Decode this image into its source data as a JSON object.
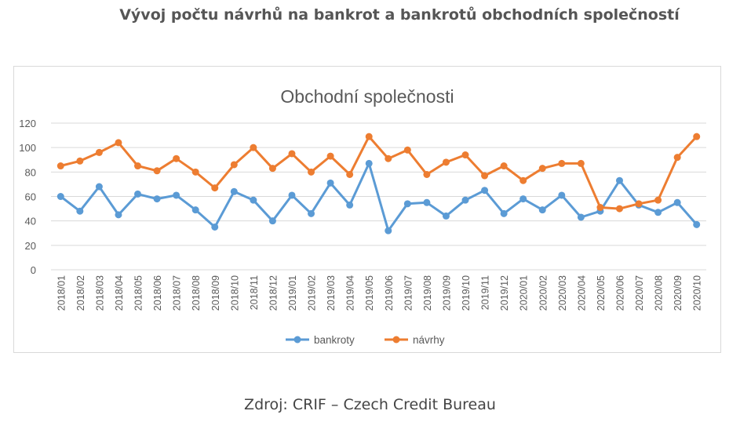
{
  "page": {
    "heading": "Vývoj počtu návrhů na bankrot a bankrotů obchodních společností",
    "source": "Zdroj: CRIF – Czech Credit Bureau"
  },
  "chart_data": {
    "type": "line",
    "title": "Obchodní společnosti",
    "xlabel": "",
    "ylabel": "",
    "ylim": [
      0,
      120
    ],
    "yticks": [
      0,
      20,
      40,
      60,
      80,
      100,
      120
    ],
    "grid": true,
    "legend_position": "bottom",
    "categories": [
      "2018/01",
      "2018/02",
      "2018/03",
      "2018/04",
      "2018/05",
      "2018/06",
      "2018/07",
      "2018/08",
      "2018/09",
      "2018/10",
      "2018/11",
      "2018/12",
      "2019/01",
      "2019/02",
      "2019/03",
      "2019/04",
      "2019/05",
      "2019/06",
      "2019/07",
      "2019/08",
      "2019/09",
      "2019/10",
      "2019/11",
      "2019/12",
      "2020/01",
      "2020/02",
      "2020/03",
      "2020/04",
      "2020/05",
      "2020/06",
      "2020/07",
      "2020/08",
      "2020/09",
      "2020/10"
    ],
    "series": [
      {
        "name": "bankroty",
        "color": "#5b9bd5",
        "values": [
          60,
          48,
          68,
          45,
          62,
          58,
          61,
          49,
          35,
          64,
          57,
          40,
          61,
          46,
          71,
          53,
          87,
          32,
          54,
          55,
          44,
          57,
          65,
          46,
          58,
          49,
          61,
          43,
          48,
          73,
          53,
          47,
          55,
          37
        ]
      },
      {
        "name": "návrhy",
        "color": "#ed7d31",
        "values": [
          85,
          89,
          96,
          104,
          85,
          81,
          91,
          80,
          67,
          86,
          100,
          83,
          95,
          80,
          93,
          78,
          109,
          91,
          98,
          78,
          88,
          94,
          77,
          85,
          73,
          83,
          87,
          87,
          51,
          50,
          54,
          57,
          92,
          109
        ]
      }
    ]
  }
}
